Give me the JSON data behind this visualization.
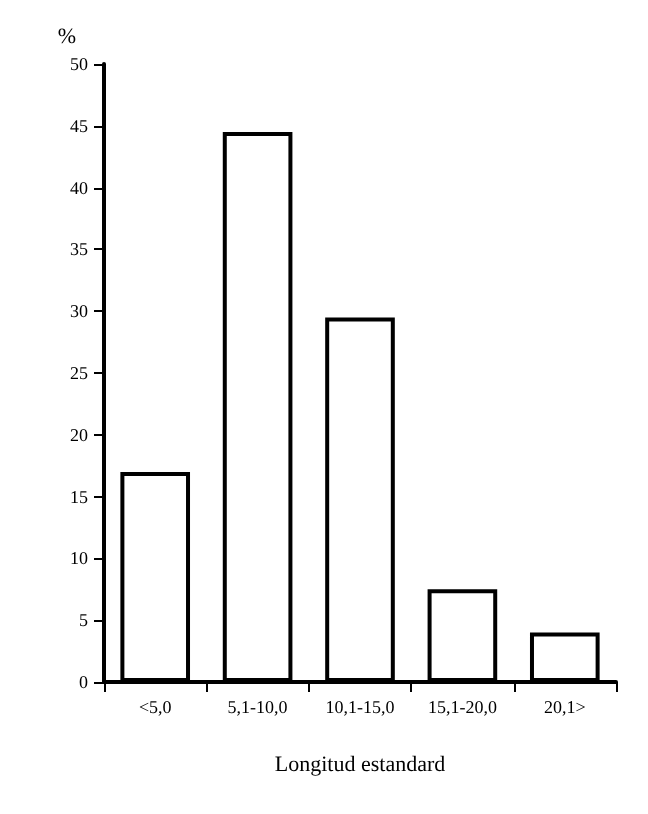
{
  "chart_data": {
    "type": "bar",
    "xlabel": "Longitud estandard",
    "ylabel": "%",
    "categories": [
      "<5,0",
      "5,1-10,0",
      "10,1-15,0",
      "15,1-20,0",
      "20,1>"
    ],
    "values": [
      17,
      44.5,
      29.5,
      7.5,
      4
    ],
    "color": "#ffffff",
    "ylim": [
      0,
      50
    ],
    "yticks": [
      0,
      5,
      10,
      15,
      20,
      25,
      30,
      35,
      40,
      45,
      50
    ],
    "grid": false
  }
}
